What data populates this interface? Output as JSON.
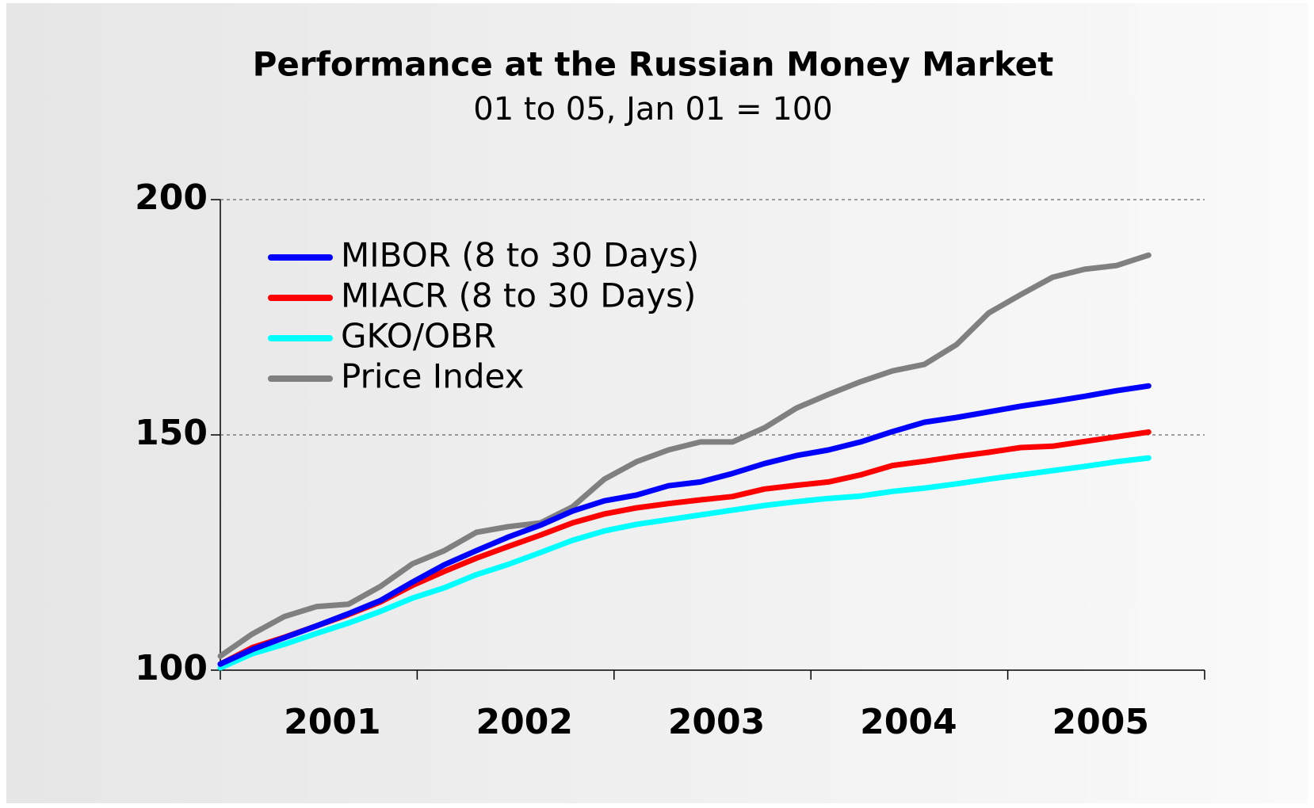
{
  "chart_data": {
    "type": "line",
    "title": "Performance at the Russian Money Market",
    "subtitle": "01 to 05, Jan 01 = 100",
    "categories": [
      null,
      null,
      null,
      "2001",
      null,
      null,
      null,
      null,
      null,
      "2002",
      null,
      null,
      null,
      null,
      null,
      "2003",
      null,
      null,
      null,
      null,
      null,
      "2004",
      null,
      null,
      null,
      null,
      null,
      "2005",
      null,
      null
    ],
    "series": [
      {
        "name": "MIBOR (8 to 30 Days)",
        "color": "#0000ff",
        "values": [
          101.3,
          104.4,
          106.9,
          109.4,
          112,
          114.8,
          118.7,
          122.4,
          125.4,
          128.3,
          130.8,
          133.8,
          136,
          137.2,
          139.2,
          140,
          141.8,
          143.9,
          145.6,
          146.8,
          148.5,
          150.7,
          152.7,
          153.7,
          154.9,
          156.1,
          157.1,
          158.2,
          159.4,
          160.4
        ]
      },
      {
        "name": "MIACR (8 to 30 Days)",
        "color": "#ff0000",
        "values": [
          101.3,
          104.8,
          107,
          109.4,
          111.8,
          114.5,
          118,
          121,
          123.8,
          126.3,
          128.7,
          131.3,
          133.2,
          134.5,
          135.4,
          136.2,
          136.9,
          138.5,
          139.3,
          140,
          141.5,
          143.5,
          144.4,
          145.4,
          146.3,
          147.3,
          147.6,
          148.6,
          149.6,
          150.6
        ]
      },
      {
        "name": "GKO/OBR",
        "color": "#00ffff",
        "values": [
          100.5,
          103.5,
          105.5,
          107.8,
          110,
          112.5,
          115.3,
          117.5,
          120.3,
          122.5,
          125,
          127.6,
          129.6,
          131,
          132,
          133,
          134,
          135,
          135.8,
          136.5,
          137,
          138,
          138.7,
          139.6,
          140.6,
          141.5,
          142.4,
          143.3,
          144.3,
          145.1
        ]
      },
      {
        "name": "Price Index",
        "color": "#808080",
        "values": [
          103,
          107.7,
          111.4,
          113.5,
          114,
          117.8,
          122.6,
          125.4,
          129.3,
          130.5,
          131.3,
          134.7,
          140.6,
          144.3,
          146.8,
          148.5,
          148.5,
          151.5,
          155.7,
          158.6,
          161.3,
          163.6,
          165,
          169.2,
          175.9,
          179.8,
          183.5,
          185.2,
          186,
          188.2
        ]
      }
    ],
    "ylim": [
      100,
      200
    ],
    "yticks": [
      100,
      150,
      200
    ],
    "grid": true,
    "legend": "upper left"
  }
}
